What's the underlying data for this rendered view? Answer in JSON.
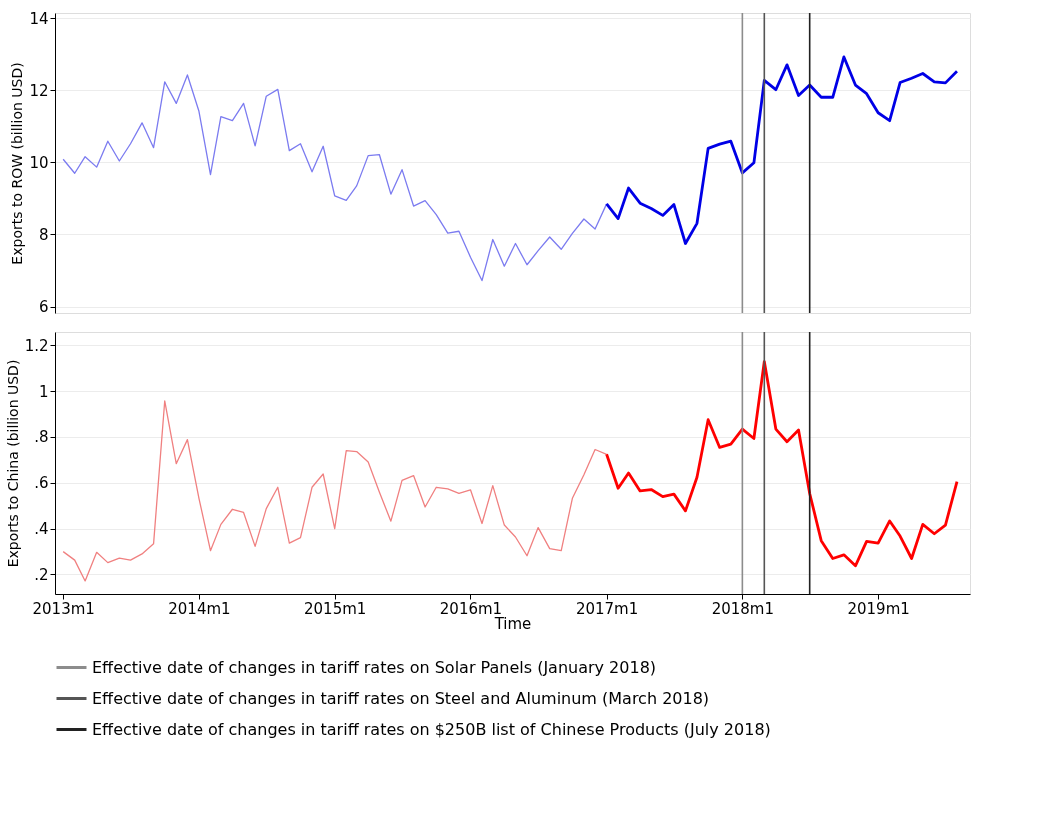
{
  "chart_data": [
    {
      "type": "line",
      "ylabel": "Exports to ROW (billion USD)",
      "xlim": [
        "2012-12-10",
        "2019-09-05"
      ],
      "ylim": [
        5.82,
        14.15
      ],
      "yticks": [
        6,
        8,
        10,
        12,
        14
      ],
      "tick_labels": "y",
      "grid": "y",
      "marker": "none",
      "line_style": "solid",
      "series": [
        {
          "color": "#7b7bf0",
          "x": [
            "2013-01",
            "2013-02",
            "2013-03",
            "2013-04",
            "2013-05",
            "2013-06",
            "2013-07",
            "2013-08",
            "2013-09",
            "2013-10",
            "2013-11",
            "2013-12",
            "2014-01",
            "2014-02",
            "2014-03",
            "2014-04",
            "2014-05",
            "2014-06",
            "2014-07",
            "2014-08",
            "2014-09",
            "2014-10",
            "2014-11",
            "2014-12",
            "2015-01",
            "2015-02",
            "2015-03",
            "2015-04",
            "2015-05",
            "2015-06",
            "2015-07",
            "2015-08",
            "2015-09",
            "2015-10",
            "2015-11",
            "2015-12",
            "2016-01",
            "2016-02",
            "2016-03",
            "2016-04",
            "2016-05",
            "2016-06",
            "2016-07",
            "2016-08",
            "2016-09",
            "2016-10",
            "2016-11",
            "2016-12",
            "2017-01"
          ],
          "values": [
            10.09,
            9.7,
            10.16,
            9.87,
            10.59,
            10.04,
            10.52,
            11.1,
            10.41,
            12.24,
            11.64,
            12.43,
            11.42,
            9.66,
            11.27,
            11.16,
            11.64,
            10.46,
            11.84,
            12.03,
            10.33,
            10.52,
            9.74,
            10.45,
            9.07,
            8.95,
            9.35,
            10.19,
            10.22,
            9.12,
            9.8,
            8.79,
            8.94,
            8.55,
            8.04,
            8.09,
            7.37,
            6.72,
            7.86,
            7.12,
            7.75,
            7.16,
            7.55,
            7.93,
            7.59,
            8.03,
            8.43,
            8.15,
            8.85
          ]
        },
        {
          "color": "#0000e6",
          "x": [
            "2017-01",
            "2017-02",
            "2017-03",
            "2017-04",
            "2017-05",
            "2017-06",
            "2017-07",
            "2017-08",
            "2017-09",
            "2017-10",
            "2017-11",
            "2017-12",
            "2018-01",
            "2018-02",
            "2018-03",
            "2018-04",
            "2018-05",
            "2018-06",
            "2018-07",
            "2018-08",
            "2018-09",
            "2018-10",
            "2018-11",
            "2018-12",
            "2019-01",
            "2019-02",
            "2019-03",
            "2019-04",
            "2019-05",
            "2019-06",
            "2019-07",
            "2019-08"
          ],
          "values": [
            8.85,
            8.44,
            9.29,
            8.87,
            8.72,
            8.53,
            8.83,
            7.75,
            8.31,
            10.39,
            10.51,
            10.59,
            9.71,
            9.99,
            12.28,
            12.02,
            12.71,
            11.86,
            12.15,
            11.81,
            11.81,
            12.93,
            12.15,
            11.91,
            11.38,
            11.16,
            12.22,
            12.34,
            12.47,
            12.24,
            12.21,
            12.53
          ]
        }
      ],
      "ref_lines": [
        {
          "axis": "x",
          "value": "2018-01",
          "color": "#8c8c8c"
        },
        {
          "axis": "x",
          "value": "2018-03",
          "color": "#555555"
        },
        {
          "axis": "x",
          "value": "2018-07",
          "color": "#222222"
        }
      ]
    },
    {
      "type": "line",
      "ylabel": "Exports to China (billion USD)",
      "xlabel": "Time",
      "xlim": [
        "2012-12-10",
        "2019-09-05"
      ],
      "ylim": [
        0.114,
        1.258
      ],
      "xticks": [
        {
          "value": "2013-01",
          "label": "2013m1"
        },
        {
          "value": "2014-01",
          "label": "2014m1"
        },
        {
          "value": "2015-01",
          "label": "2015m1"
        },
        {
          "value": "2016-01",
          "label": "2016m1"
        },
        {
          "value": "2017-01",
          "label": "2017m1"
        },
        {
          "value": "2018-01",
          "label": "2018m1"
        },
        {
          "value": "2019-01",
          "label": "2019m1"
        }
      ],
      "yticks": [
        {
          "value": 0.2,
          "label": ".2"
        },
        {
          "value": 0.4,
          "label": ".4"
        },
        {
          "value": 0.6,
          "label": ".6"
        },
        {
          "value": 0.8,
          "label": ".8"
        },
        1,
        1.2
      ],
      "grid": "y",
      "marker": "none",
      "line_style": "solid",
      "legend": "bottom",
      "series": [
        {
          "color": "#f08080",
          "x": [
            "2013-01",
            "2013-02",
            "2013-03",
            "2013-04",
            "2013-05",
            "2013-06",
            "2013-07",
            "2013-08",
            "2013-09",
            "2013-10",
            "2013-11",
            "2013-12",
            "2014-01",
            "2014-02",
            "2014-03",
            "2014-04",
            "2014-05",
            "2014-06",
            "2014-07",
            "2014-08",
            "2014-09",
            "2014-10",
            "2014-11",
            "2014-12",
            "2015-01",
            "2015-02",
            "2015-03",
            "2015-04",
            "2015-05",
            "2015-06",
            "2015-07",
            "2015-08",
            "2015-09",
            "2015-10",
            "2015-11",
            "2015-12",
            "2016-01",
            "2016-02",
            "2016-03",
            "2016-04",
            "2016-05",
            "2016-06",
            "2016-07",
            "2016-08",
            "2016-09",
            "2016-10",
            "2016-11",
            "2016-12",
            "2017-01"
          ],
          "values": [
            0.299,
            0.262,
            0.171,
            0.296,
            0.251,
            0.271,
            0.262,
            0.289,
            0.333,
            0.957,
            0.683,
            0.788,
            0.532,
            0.303,
            0.418,
            0.484,
            0.47,
            0.322,
            0.487,
            0.58,
            0.336,
            0.36,
            0.58,
            0.638,
            0.399,
            0.74,
            0.736,
            0.69,
            0.559,
            0.432,
            0.61,
            0.631,
            0.494,
            0.58,
            0.573,
            0.553,
            0.569,
            0.422,
            0.587,
            0.415,
            0.363,
            0.281,
            0.404,
            0.312,
            0.303,
            0.532,
            0.635,
            0.745,
            0.724
          ]
        },
        {
          "color": "#ff0000",
          "x": [
            "2017-01",
            "2017-02",
            "2017-03",
            "2017-04",
            "2017-05",
            "2017-06",
            "2017-07",
            "2017-08",
            "2017-09",
            "2017-10",
            "2017-11",
            "2017-12",
            "2018-01",
            "2018-02",
            "2018-03",
            "2018-04",
            "2018-05",
            "2018-06",
            "2018-07",
            "2018-08",
            "2018-09",
            "2018-10",
            "2018-11",
            "2018-12",
            "2019-01",
            "2019-02",
            "2019-03",
            "2019-04",
            "2019-05",
            "2019-06",
            "2019-07",
            "2019-08"
          ],
          "values": [
            0.724,
            0.576,
            0.642,
            0.564,
            0.57,
            0.539,
            0.55,
            0.477,
            0.624,
            0.875,
            0.754,
            0.768,
            0.834,
            0.793,
            1.129,
            0.834,
            0.779,
            0.83,
            0.553,
            0.347,
            0.269,
            0.285,
            0.237,
            0.344,
            0.336,
            0.433,
            0.367,
            0.269,
            0.418,
            0.377,
            0.415,
            0.605
          ]
        }
      ],
      "ref_lines": [
        {
          "axis": "x",
          "value": "2018-01",
          "color": "#8c8c8c",
          "label": "Effective date of changes in tariff rates on Solar Panels (January 2018)"
        },
        {
          "axis": "x",
          "value": "2018-03",
          "color": "#555555",
          "label": "Effective date of changes in tariff rates on Steel and Aluminum (March 2018)"
        },
        {
          "axis": "x",
          "value": "2018-07",
          "color": "#222222",
          "label": "Effective date of changes in tariff rates on $250B list of Chinese Products (July 2018)"
        }
      ]
    }
  ]
}
